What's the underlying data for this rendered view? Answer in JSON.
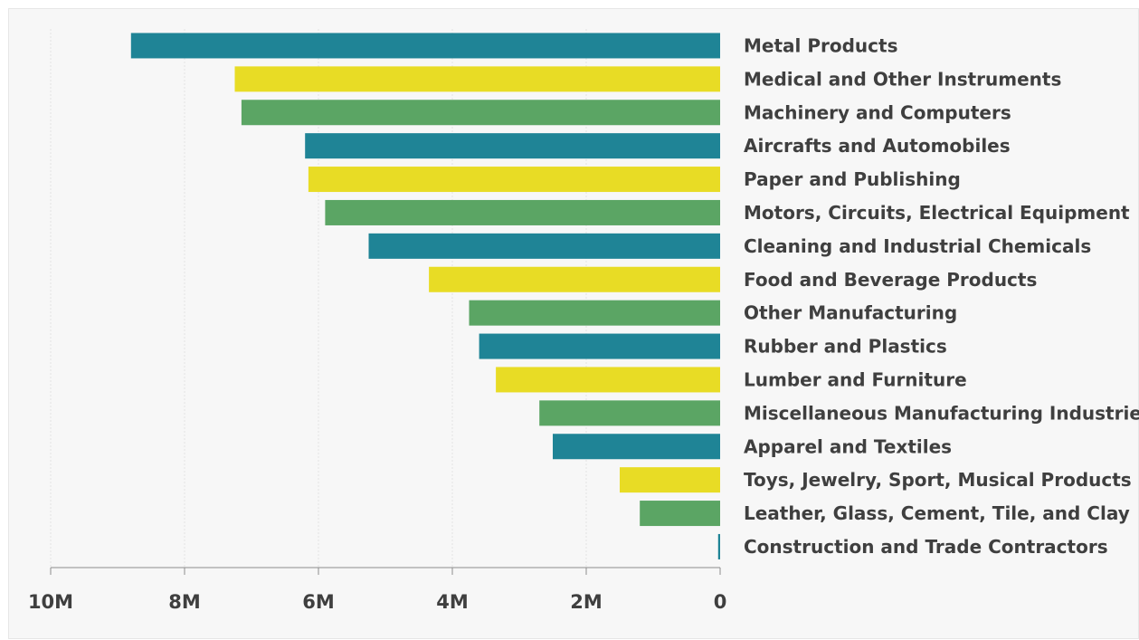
{
  "chart_data": {
    "type": "bar",
    "orientation": "horizontal",
    "x_direction": "reversed",
    "categories": [
      "Metal Products",
      "Medical and Other Instruments",
      "Machinery and Computers",
      "Aircrafts and Automobiles",
      "Paper and Publishing",
      "Motors, Circuits, Electrical Equipment",
      "Cleaning and Industrial Chemicals",
      "Food and Beverage Products",
      "Other Manufacturing",
      "Rubber and Plastics",
      "Lumber and Furniture",
      "Miscellaneous Manufacturing Industries",
      "Apparel and Textiles",
      "Toys, Jewelry, Sport, Musical Products",
      "Leather, Glass, Cement, Tile, and Clay",
      "Construction and Trade Contractors"
    ],
    "values": [
      8800000,
      7250000,
      7150000,
      6200000,
      6150000,
      5900000,
      5250000,
      4350000,
      3750000,
      3600000,
      3350000,
      2700000,
      2500000,
      1500000,
      1200000,
      30000
    ],
    "colors": [
      "#1f8496",
      "#e8dc25",
      "#5ba564",
      "#1f8496",
      "#e8dc25",
      "#5ba564",
      "#1f8496",
      "#e8dc25",
      "#5ba564",
      "#1f8496",
      "#e8dc25",
      "#5ba564",
      "#1f8496",
      "#e8dc25",
      "#5ba564",
      "#1f8496"
    ],
    "xlim": [
      0,
      10000000
    ],
    "xticks": [
      10000000,
      8000000,
      6000000,
      4000000,
      2000000,
      0
    ],
    "xtick_labels": [
      "10M",
      "8M",
      "6M",
      "4M",
      "2M",
      "0"
    ],
    "title": "",
    "xlabel": "",
    "ylabel": "",
    "grid": "vertical",
    "legend": "none"
  }
}
